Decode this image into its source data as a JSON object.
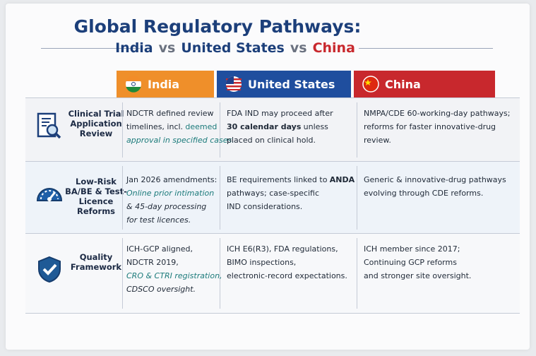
{
  "header": {
    "title": "Global Regulatory Pathways:",
    "subtitle": [
      {
        "text": "India",
        "color": "#1c3f7a"
      },
      {
        "text": "vs",
        "color": "#6b7280"
      },
      {
        "text": "United States",
        "color": "#1c3f7a"
      },
      {
        "text": "vs",
        "color": "#6b7280"
      },
      {
        "text": "China",
        "color": "#c8282d"
      }
    ]
  },
  "table": {
    "columns": [
      {
        "label": "India",
        "color": "#ef8f2a"
      },
      {
        "label": "United States",
        "color": "#1f4e9e"
      },
      {
        "label": "China",
        "color": "#c8282d"
      }
    ],
    "rows": [
      {
        "label": "Clinical Trial Application Review",
        "cells": [
          [
            [
              {
                "text": "NDCTR defined review"
              }
            ],
            [
              {
                "text": "timelines, incl."
              },
              {
                "text": "deemed",
                "style": "green"
              }
            ],
            [
              {
                "text": "approval in specified cases.",
                "style": "em-green"
              }
            ]
          ],
          [
            [
              {
                "text": "FDA IND may proceed after"
              }
            ],
            [
              {
                "text": "30 calendar days",
                "style": "bold"
              },
              {
                "text": "unless"
              }
            ],
            [
              {
                "text": "placed on clinical hold."
              }
            ]
          ],
          [
            [
              {
                "text": "NMPA/CDE 60-working-day pathways;"
              }
            ],
            [
              {
                "text": "reforms for faster innovative-drug"
              }
            ],
            [
              {
                "text": "review."
              }
            ]
          ]
        ]
      },
      {
        "label": "Low-Risk BA/BE & Test-Licence Reforms",
        "cells": [
          [
            [
              {
                "text": "Jan 2026 amendments:"
              }
            ],
            [
              {
                "text": "Online prior intimation",
                "style": "em-green"
              }
            ],
            [
              {
                "text": "& 45-day processing",
                "style": "em"
              }
            ],
            [
              {
                "text": "for test licences.",
                "style": "em"
              }
            ]
          ],
          [
            [
              {
                "text": "BE requirements linked to"
              },
              {
                "text": "ANDA",
                "style": "bold"
              }
            ],
            [
              {
                "text": "pathways; case-specific"
              }
            ],
            [
              {
                "text": "IND considerations."
              }
            ]
          ],
          [
            [
              {
                "text": "Generic & innovative-drug pathways"
              }
            ],
            [
              {
                "text": "evolving through CDE reforms."
              }
            ]
          ]
        ]
      },
      {
        "label": "Quality Framework",
        "cells": [
          [
            [
              {
                "text": "ICH-GCP aligned,"
              }
            ],
            [
              {
                "text": "NDCTR 2019,"
              }
            ],
            [
              {
                "text": "CRO & CTRI registration,",
                "style": "em-green"
              }
            ],
            [
              {
                "text": "CDSCO oversight.",
                "style": "em"
              }
            ]
          ],
          [
            [
              {
                "text": "ICH E6(R3), FDA regulations,"
              }
            ],
            [
              {
                "text": "BIMO inspections,"
              }
            ],
            [
              {
                "text": "electronic-record expectations."
              }
            ]
          ],
          [
            [
              {
                "text": "ICH member since 2017;"
              }
            ],
            [
              {
                "text": "Continuing GCP reforms"
              }
            ],
            [
              {
                "text": "and stronger site oversight."
              }
            ]
          ]
        ]
      }
    ]
  }
}
